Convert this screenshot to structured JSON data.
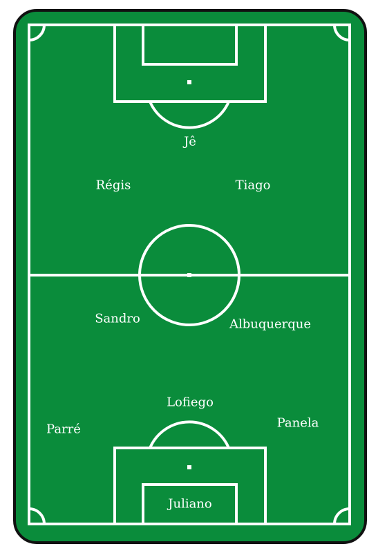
{
  "pitch": {
    "colors": {
      "grass": "#0a8c3b",
      "lines": "#ffffff",
      "border": "#111111"
    }
  },
  "players": [
    {
      "id": "je",
      "name": "Jê",
      "role": "forward"
    },
    {
      "id": "regis",
      "name": "Régis",
      "role": "attacking-left"
    },
    {
      "id": "tiago",
      "name": "Tiago",
      "role": "attacking-right"
    },
    {
      "id": "sandro",
      "name": "Sandro",
      "role": "midfield-left"
    },
    {
      "id": "albuquerque",
      "name": "Albuquerque",
      "role": "midfield-right"
    },
    {
      "id": "lofiego",
      "name": "Lofiego",
      "role": "defender-center"
    },
    {
      "id": "parre",
      "name": "Parré",
      "role": "defender-left"
    },
    {
      "id": "panela",
      "name": "Panela",
      "role": "defender-right"
    },
    {
      "id": "juliano",
      "name": "Juliano",
      "role": "goalkeeper"
    }
  ]
}
